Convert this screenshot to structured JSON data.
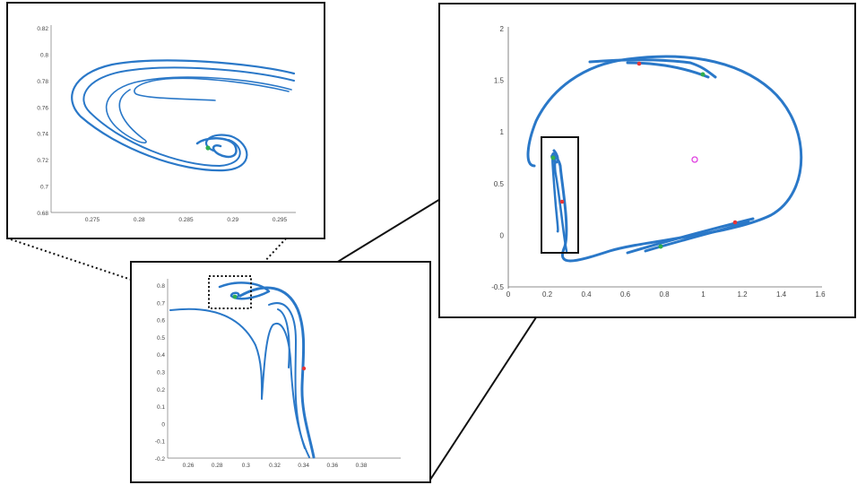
{
  "chart_data": [
    {
      "panel": "main-view",
      "type": "line",
      "xlim": [
        0,
        1.6
      ],
      "ylim": [
        -0.5,
        2
      ],
      "x_ticks": [
        "0",
        "0.2",
        "0.4",
        "0.6",
        "0.8",
        "1",
        "1.2",
        "1.4",
        "1.6"
      ],
      "y_ticks": [
        "2",
        "1.5",
        "1",
        "0.5",
        "0",
        "-0.5"
      ],
      "markers": {
        "center": {
          "x": 0.98,
          "y": 0.72,
          "color": "#e040e0"
        },
        "red": [
          {
            "x": 0.71,
            "y": 1.65
          },
          {
            "x": 1.18,
            "y": 0.1
          },
          {
            "x": 0.33,
            "y": 0.3
          }
        ],
        "green": [
          {
            "x": 1.03,
            "y": 1.54
          },
          {
            "x": 0.82,
            "y": -0.12
          },
          {
            "x": 0.28,
            "y": 0.72
          }
        ]
      },
      "zoom_box": {
        "x": [
          0.22,
          0.41
        ],
        "y": [
          -0.18,
          0.93
        ]
      }
    },
    {
      "panel": "zoom-1",
      "type": "line",
      "xlim": [
        0.24,
        0.4
      ],
      "ylim": [
        -0.2,
        0.85
      ],
      "x_ticks": [
        "0.26",
        "0.28",
        "0.3",
        "0.32",
        "0.34",
        "0.36",
        "0.38"
      ],
      "y_ticks": [
        "0.8",
        "0.7",
        "0.6",
        "0.5",
        "0.4",
        "0.3",
        "0.2",
        "0.1",
        "0",
        "-0.1",
        "-0.2"
      ],
      "markers": {
        "red": [
          {
            "x": 0.333,
            "y": 0.32
          }
        ],
        "green": [
          {
            "x": 0.287,
            "y": 0.73
          }
        ]
      },
      "zoom_box": {
        "x": [
          0.27,
          0.295
        ],
        "y": [
          0.68,
          0.82
        ]
      }
    },
    {
      "panel": "zoom-2",
      "type": "line",
      "xlim": [
        0.27,
        0.296
      ],
      "ylim": [
        0.68,
        0.82
      ],
      "x_ticks": [
        "0.275",
        "0.28",
        "0.285",
        "0.29",
        "0.295"
      ],
      "y_ticks": [
        "0.82",
        "0.8",
        "0.78",
        "0.76",
        "0.74",
        "0.72",
        "0.7",
        "0.68"
      ],
      "markers": {
        "green": [
          {
            "x": 0.287,
            "y": 0.728
          }
        ]
      }
    }
  ],
  "colors": {
    "curve": "#2a78c8",
    "red_marker": "#e83535",
    "green_marker": "#2fae4f",
    "center_marker": "#e040e0",
    "frame": "#111111"
  }
}
